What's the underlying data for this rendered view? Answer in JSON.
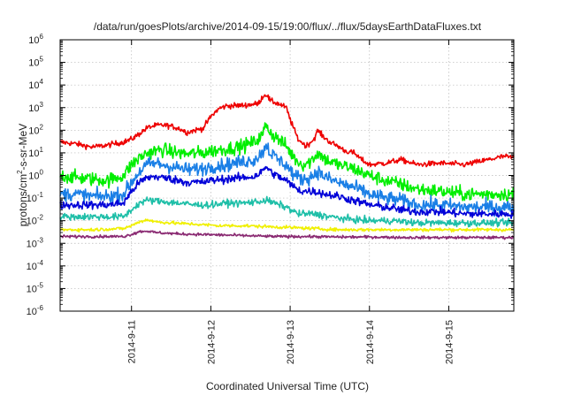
{
  "chart_data": {
    "type": "line",
    "title": "/data/run/goesPlots/archive/2014-09-15/19:00/flux/../flux/5daysEarthDataFluxes.txt",
    "xlabel": "Coordinated Universal Time (UTC)",
    "ylabel": "protons/cm²-s-sr-MeV",
    "ylabel_parts": {
      "pre": "protons/cm",
      "sup": "2",
      "post": "-s-sr-MeV"
    },
    "x_unit": "days since 2014-09-10 00:00 UTC",
    "xlim": [
      0.1,
      5.82
    ],
    "x_ticks": [
      {
        "x": 1,
        "label": "2014-9-11"
      },
      {
        "x": 2,
        "label": "2014-9-12"
      },
      {
        "x": 3,
        "label": "2014-9-13"
      },
      {
        "x": 4,
        "label": "2014-9-14"
      },
      {
        "x": 5,
        "label": "2014-9-15"
      }
    ],
    "y_scale": "log",
    "ylim_exp": [
      -6,
      6
    ],
    "y_ticks": [
      {
        "base": "10",
        "exp": "6"
      },
      {
        "base": "10",
        "exp": "5"
      },
      {
        "base": "10",
        "exp": "4"
      },
      {
        "base": "10",
        "exp": "3"
      },
      {
        "base": "10",
        "exp": "2"
      },
      {
        "base": "10",
        "exp": "1"
      },
      {
        "base": "10",
        "exp": "0"
      },
      {
        "base": "10",
        "exp": "-1"
      },
      {
        "base": "10",
        "exp": "-2"
      },
      {
        "base": "10",
        "exp": "-3"
      },
      {
        "base": "10",
        "exp": "-4"
      },
      {
        "base": "10",
        "exp": "-5"
      },
      {
        "base": "10",
        "exp": "-6"
      }
    ],
    "grid": true,
    "series": [
      {
        "color": "#ee0000",
        "noise": 0.12,
        "points": [
          [
            0.1,
            30
          ],
          [
            0.3,
            25
          ],
          [
            0.5,
            18
          ],
          [
            0.7,
            22
          ],
          [
            0.9,
            30
          ],
          [
            1.0,
            40
          ],
          [
            1.1,
            70
          ],
          [
            1.2,
            130
          ],
          [
            1.3,
            160
          ],
          [
            1.4,
            170
          ],
          [
            1.5,
            150
          ],
          [
            1.6,
            120
          ],
          [
            1.7,
            80
          ],
          [
            1.8,
            100
          ],
          [
            1.9,
            120
          ],
          [
            2.0,
            400
          ],
          [
            2.1,
            900
          ],
          [
            2.2,
            1200
          ],
          [
            2.4,
            1250
          ],
          [
            2.6,
            1500
          ],
          [
            2.65,
            3000
          ],
          [
            2.7,
            4000
          ],
          [
            2.75,
            2000
          ],
          [
            2.85,
            1500
          ],
          [
            2.95,
            1000
          ],
          [
            3.0,
            300
          ],
          [
            3.1,
            40
          ],
          [
            3.2,
            20
          ],
          [
            3.3,
            40
          ],
          [
            3.35,
            100
          ],
          [
            3.4,
            60
          ],
          [
            3.5,
            30
          ],
          [
            3.6,
            20
          ],
          [
            3.7,
            12
          ],
          [
            3.8,
            10
          ],
          [
            3.9,
            5
          ],
          [
            4.0,
            3
          ],
          [
            4.2,
            3.5
          ],
          [
            4.4,
            5
          ],
          [
            4.6,
            3
          ],
          [
            4.9,
            3.5
          ],
          [
            5.2,
            3
          ],
          [
            5.5,
            5
          ],
          [
            5.7,
            7
          ],
          [
            5.82,
            6
          ]
        ]
      },
      {
        "color": "#00ee00",
        "noise": 0.3,
        "points": [
          [
            0.1,
            1.0
          ],
          [
            0.3,
            0.8
          ],
          [
            0.5,
            0.7
          ],
          [
            0.7,
            0.6
          ],
          [
            0.9,
            1.0
          ],
          [
            1.0,
            3
          ],
          [
            1.1,
            6
          ],
          [
            1.2,
            10
          ],
          [
            1.3,
            12
          ],
          [
            1.4,
            14
          ],
          [
            1.5,
            11
          ],
          [
            1.7,
            9
          ],
          [
            1.9,
            10
          ],
          [
            2.0,
            12
          ],
          [
            2.2,
            15
          ],
          [
            2.4,
            20
          ],
          [
            2.55,
            30
          ],
          [
            2.65,
            60
          ],
          [
            2.7,
            200
          ],
          [
            2.75,
            80
          ],
          [
            2.85,
            40
          ],
          [
            2.95,
            20
          ],
          [
            3.05,
            6
          ],
          [
            3.15,
            3
          ],
          [
            3.25,
            4
          ],
          [
            3.35,
            10
          ],
          [
            3.45,
            5
          ],
          [
            3.6,
            3
          ],
          [
            3.8,
            2
          ],
          [
            4.0,
            1.0
          ],
          [
            4.2,
            0.6
          ],
          [
            4.4,
            0.4
          ],
          [
            4.6,
            0.25
          ],
          [
            4.9,
            0.2
          ],
          [
            5.2,
            0.15
          ],
          [
            5.5,
            0.15
          ],
          [
            5.82,
            0.15
          ]
        ]
      },
      {
        "color": "#1a7fe6",
        "noise": 0.3,
        "points": [
          [
            0.1,
            0.15
          ],
          [
            0.3,
            0.15
          ],
          [
            0.5,
            0.12
          ],
          [
            0.7,
            0.12
          ],
          [
            0.9,
            0.15
          ],
          [
            1.0,
            0.5
          ],
          [
            1.1,
            1.5
          ],
          [
            1.2,
            3
          ],
          [
            1.3,
            3.5
          ],
          [
            1.5,
            2.5
          ],
          [
            1.7,
            1.8
          ],
          [
            1.9,
            2
          ],
          [
            2.0,
            2.5
          ],
          [
            2.2,
            3
          ],
          [
            2.4,
            4
          ],
          [
            2.55,
            5
          ],
          [
            2.65,
            10
          ],
          [
            2.7,
            25
          ],
          [
            2.75,
            10
          ],
          [
            2.85,
            5
          ],
          [
            2.95,
            3
          ],
          [
            3.05,
            1.0
          ],
          [
            3.15,
            0.7
          ],
          [
            3.25,
            0.8
          ],
          [
            3.35,
            1.5
          ],
          [
            3.45,
            0.8
          ],
          [
            3.6,
            0.5
          ],
          [
            3.8,
            0.3
          ],
          [
            4.0,
            0.15
          ],
          [
            4.2,
            0.1
          ],
          [
            4.4,
            0.08
          ],
          [
            4.6,
            0.05
          ],
          [
            4.9,
            0.05
          ],
          [
            5.2,
            0.04
          ],
          [
            5.5,
            0.04
          ],
          [
            5.82,
            0.04
          ]
        ]
      },
      {
        "color": "#0000d8",
        "noise": 0.18,
        "points": [
          [
            0.1,
            0.05
          ],
          [
            0.3,
            0.05
          ],
          [
            0.5,
            0.05
          ],
          [
            0.7,
            0.05
          ],
          [
            0.9,
            0.06
          ],
          [
            1.0,
            0.2
          ],
          [
            1.1,
            0.5
          ],
          [
            1.2,
            0.8
          ],
          [
            1.3,
            0.9
          ],
          [
            1.5,
            0.7
          ],
          [
            1.7,
            0.5
          ],
          [
            1.9,
            0.5
          ],
          [
            2.0,
            0.6
          ],
          [
            2.2,
            0.7
          ],
          [
            2.4,
            0.8
          ],
          [
            2.55,
            0.9
          ],
          [
            2.65,
            1.5
          ],
          [
            2.7,
            2.5
          ],
          [
            2.75,
            1.5
          ],
          [
            2.85,
            0.9
          ],
          [
            2.95,
            0.6
          ],
          [
            3.05,
            0.3
          ],
          [
            3.15,
            0.2
          ],
          [
            3.3,
            0.2
          ],
          [
            3.45,
            0.15
          ],
          [
            3.6,
            0.12
          ],
          [
            3.8,
            0.08
          ],
          [
            4.0,
            0.05
          ],
          [
            4.2,
            0.04
          ],
          [
            4.4,
            0.03
          ],
          [
            4.6,
            0.025
          ],
          [
            4.9,
            0.025
          ],
          [
            5.2,
            0.02
          ],
          [
            5.5,
            0.02
          ],
          [
            5.82,
            0.02
          ]
        ]
      },
      {
        "color": "#1fbfa8",
        "noise": 0.15,
        "points": [
          [
            0.1,
            0.015
          ],
          [
            0.3,
            0.015
          ],
          [
            0.5,
            0.015
          ],
          [
            0.7,
            0.015
          ],
          [
            0.9,
            0.015
          ],
          [
            1.0,
            0.03
          ],
          [
            1.1,
            0.06
          ],
          [
            1.2,
            0.08
          ],
          [
            1.4,
            0.07
          ],
          [
            1.6,
            0.06
          ],
          [
            1.8,
            0.05
          ],
          [
            2.0,
            0.05
          ],
          [
            2.2,
            0.06
          ],
          [
            2.4,
            0.06
          ],
          [
            2.6,
            0.07
          ],
          [
            2.7,
            0.08
          ],
          [
            2.8,
            0.06
          ],
          [
            2.95,
            0.04
          ],
          [
            3.1,
            0.02
          ],
          [
            3.3,
            0.02
          ],
          [
            3.5,
            0.015
          ],
          [
            3.7,
            0.012
          ],
          [
            4.0,
            0.01
          ],
          [
            4.3,
            0.01
          ],
          [
            4.6,
            0.008
          ],
          [
            5.0,
            0.008
          ],
          [
            5.4,
            0.008
          ],
          [
            5.82,
            0.008
          ]
        ]
      },
      {
        "color": "#f0f000",
        "noise": 0.07,
        "points": [
          [
            0.1,
            0.004
          ],
          [
            0.5,
            0.004
          ],
          [
            0.9,
            0.0045
          ],
          [
            1.0,
            0.006
          ],
          [
            1.1,
            0.009
          ],
          [
            1.2,
            0.011
          ],
          [
            1.3,
            0.009
          ],
          [
            1.5,
            0.008
          ],
          [
            1.8,
            0.007
          ],
          [
            2.1,
            0.006
          ],
          [
            2.4,
            0.006
          ],
          [
            2.7,
            0.0055
          ],
          [
            3.0,
            0.005
          ],
          [
            3.3,
            0.0045
          ],
          [
            3.6,
            0.004
          ],
          [
            4.0,
            0.004
          ],
          [
            4.5,
            0.004
          ],
          [
            5.0,
            0.004
          ],
          [
            5.5,
            0.004
          ],
          [
            5.82,
            0.004
          ]
        ]
      },
      {
        "color": "#8a2a72",
        "noise": 0.06,
        "points": [
          [
            0.1,
            0.002
          ],
          [
            0.5,
            0.002
          ],
          [
            0.9,
            0.002
          ],
          [
            1.0,
            0.0025
          ],
          [
            1.1,
            0.0033
          ],
          [
            1.2,
            0.0035
          ],
          [
            1.3,
            0.003
          ],
          [
            1.6,
            0.0026
          ],
          [
            2.0,
            0.0024
          ],
          [
            2.4,
            0.0022
          ],
          [
            2.8,
            0.002
          ],
          [
            3.2,
            0.002
          ],
          [
            3.6,
            0.0019
          ],
          [
            4.0,
            0.0019
          ],
          [
            4.5,
            0.0018
          ],
          [
            5.0,
            0.0018
          ],
          [
            5.5,
            0.0018
          ],
          [
            5.82,
            0.0018
          ]
        ]
      }
    ]
  }
}
